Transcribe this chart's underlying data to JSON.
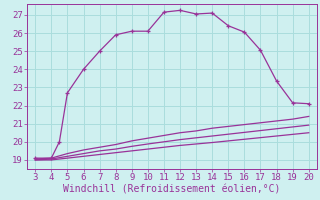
{
  "bg_color": "#cff0f0",
  "grid_color": "#aadddd",
  "line_color": "#993399",
  "xlabel": "Windchill (Refroidissement éolien,°C)",
  "xlim": [
    2.5,
    20.5
  ],
  "ylim": [
    18.5,
    27.6
  ],
  "xticks": [
    3,
    4,
    5,
    6,
    7,
    8,
    9,
    10,
    11,
    12,
    13,
    14,
    15,
    16,
    17,
    18,
    19,
    20
  ],
  "yticks": [
    19,
    20,
    21,
    22,
    23,
    24,
    25,
    26,
    27
  ],
  "xlabel_fontsize": 7.0,
  "tick_fontsize": 6.5,
  "main_line": {
    "x": [
      3,
      4,
      4.5,
      5,
      6,
      7,
      8,
      9,
      10,
      11,
      12,
      13,
      14,
      15,
      16,
      17,
      18,
      19,
      20
    ],
    "y": [
      19.1,
      19.1,
      20.0,
      22.7,
      24.0,
      25.0,
      25.9,
      26.1,
      26.1,
      27.15,
      27.25,
      27.05,
      27.1,
      26.4,
      26.05,
      25.05,
      23.35,
      22.15,
      22.1
    ]
  },
  "line2": {
    "x": [
      3,
      4,
      5,
      6,
      7,
      8,
      9,
      10,
      11,
      12,
      13,
      14,
      15,
      16,
      17,
      18,
      19,
      20
    ],
    "y": [
      19.05,
      19.1,
      19.35,
      19.55,
      19.7,
      19.85,
      20.05,
      20.2,
      20.35,
      20.5,
      20.6,
      20.75,
      20.85,
      20.95,
      21.05,
      21.15,
      21.25,
      21.4
    ]
  },
  "line3": {
    "x": [
      3,
      4,
      5,
      6,
      7,
      8,
      9,
      10,
      11,
      12,
      13,
      14,
      15,
      16,
      17,
      18,
      19,
      20
    ],
    "y": [
      19.0,
      19.05,
      19.2,
      19.35,
      19.5,
      19.6,
      19.75,
      19.88,
      20.0,
      20.12,
      20.22,
      20.32,
      20.42,
      20.52,
      20.62,
      20.72,
      20.82,
      20.92
    ]
  },
  "line4": {
    "x": [
      3,
      4,
      5,
      6,
      7,
      8,
      9,
      10,
      11,
      12,
      13,
      14,
      15,
      16,
      17,
      18,
      19,
      20
    ],
    "y": [
      19.0,
      19.0,
      19.1,
      19.2,
      19.3,
      19.4,
      19.5,
      19.6,
      19.7,
      19.8,
      19.88,
      19.96,
      20.05,
      20.14,
      20.23,
      20.32,
      20.41,
      20.5
    ]
  }
}
